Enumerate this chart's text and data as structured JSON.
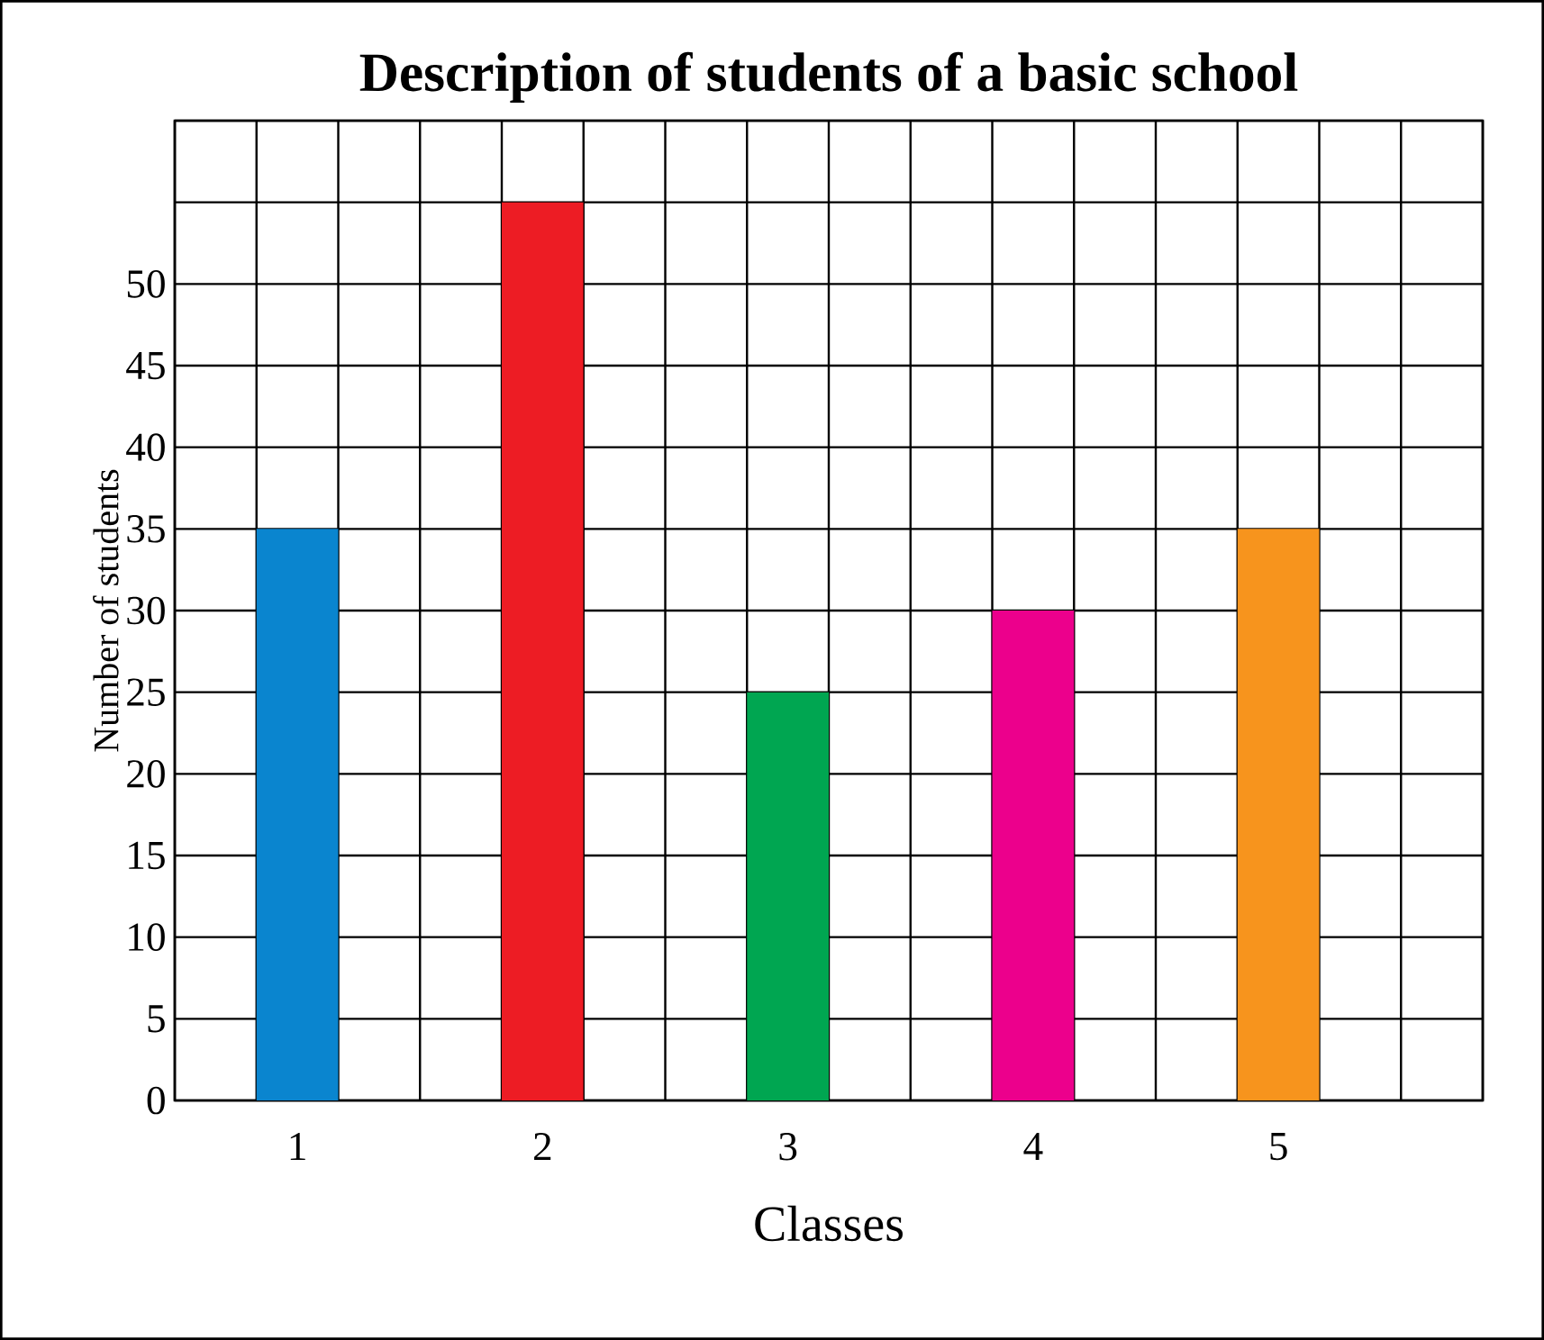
{
  "chart_data": {
    "type": "bar",
    "title": "Description of students of a basic school",
    "xlabel": "Classes",
    "ylabel": "Number of students",
    "categories": [
      "1",
      "2",
      "3",
      "4",
      "5"
    ],
    "values": [
      35,
      55,
      25,
      30,
      35
    ],
    "colors": [
      "#0a85cf",
      "#ed1c24",
      "#00a651",
      "#ec008c",
      "#f7941d"
    ],
    "ylim": [
      0,
      60
    ],
    "yticks": [
      0,
      5,
      10,
      15,
      20,
      25,
      30,
      35,
      40,
      45,
      50,
      {
        "value": 55,
        "label": null
      },
      {
        "value": 60,
        "label": null
      }
    ],
    "grid": true
  }
}
